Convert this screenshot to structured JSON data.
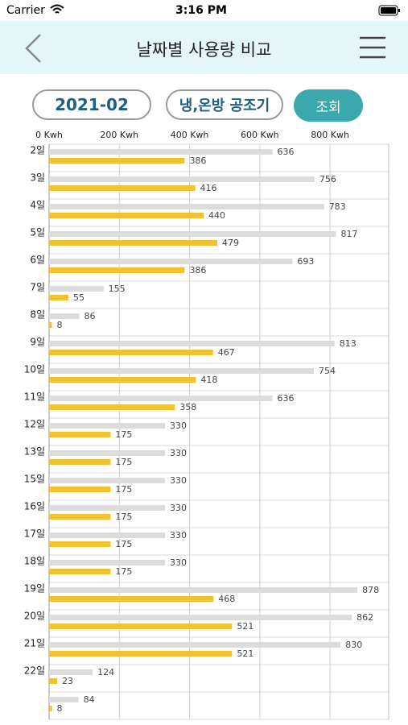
{
  "status_bar": {
    "carrier": "Carrier",
    "time": "3:16 PM"
  },
  "header": {
    "title": "날짜별 사용량 비교"
  },
  "controls": {
    "month": "2021-02",
    "device": "냉,온방 공조기",
    "search": "조회"
  },
  "chart_data": {
    "type": "bar",
    "orientation": "horizontal",
    "categories": [
      "2일",
      "3일",
      "4일",
      "5일",
      "6일",
      "7일",
      "8일",
      "9일",
      "10일",
      "11일",
      "12일",
      "13일",
      "15일",
      "16일",
      "17일",
      "18일",
      "19일",
      "20일",
      "21일",
      "22일",
      null
    ],
    "series": [
      {
        "color": "#dcdcdc",
        "values": [
          636,
          756,
          783,
          817,
          693,
          155,
          86,
          813,
          754,
          636,
          330,
          330,
          330,
          330,
          330,
          330,
          878,
          862,
          830,
          124,
          84
        ]
      },
      {
        "color": "#f2c22e",
        "values": [
          386,
          416,
          440,
          479,
          386,
          55,
          8,
          467,
          418,
          358,
          175,
          175,
          175,
          175,
          175,
          175,
          468,
          521,
          521,
          23,
          8
        ]
      }
    ],
    "xlim": [
      0,
      967
    ],
    "xticks": [
      {
        "value": 0,
        "label": "0 Kwh"
      },
      {
        "value": 200,
        "label": "200 Kwh"
      },
      {
        "value": 400,
        "label": "400 Kwh"
      },
      {
        "value": 600,
        "label": "600 Kwh"
      },
      {
        "value": 800,
        "label": "800 Kwh"
      }
    ],
    "grid": true
  }
}
